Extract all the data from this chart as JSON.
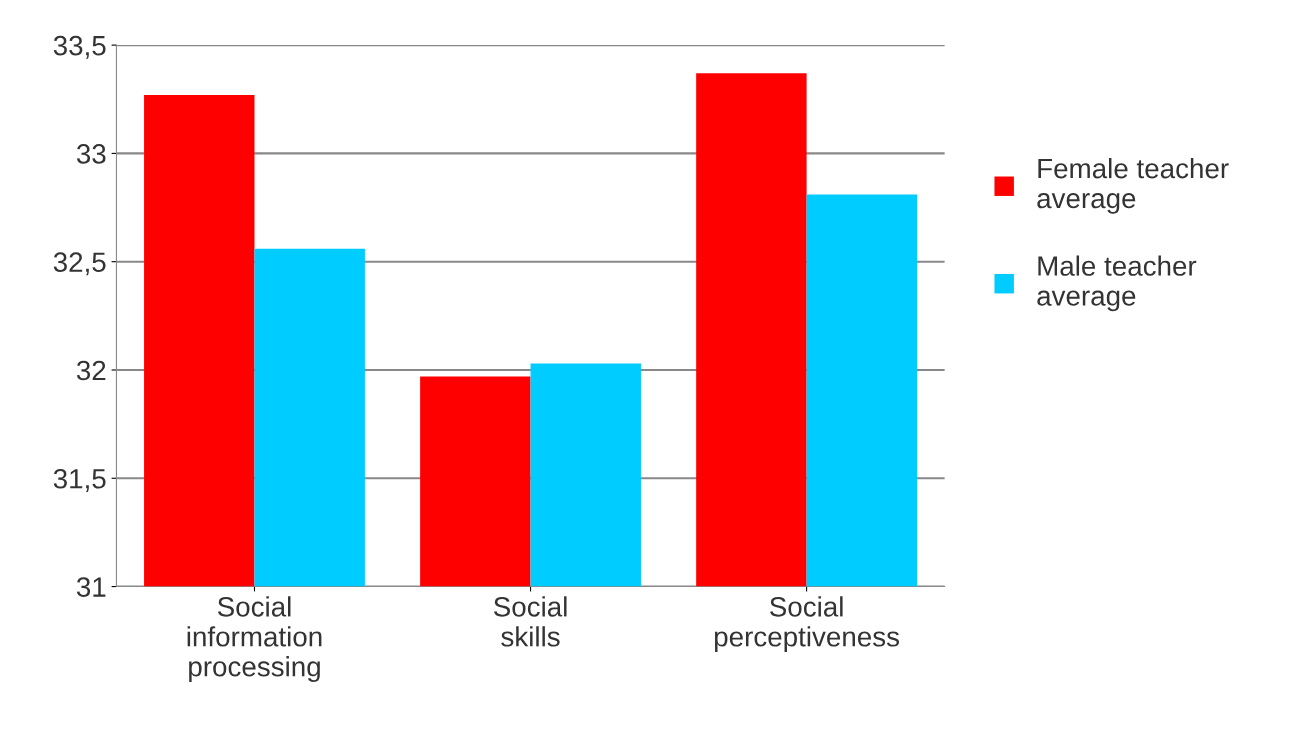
{
  "chart_data": {
    "type": "bar",
    "categories": [
      "Social\ninformation\nprocessing",
      "Social\nskills",
      "Social\nperceptiveness"
    ],
    "series": [
      {
        "name": "Female teacher\naverage",
        "color": "#ff0000",
        "values": [
          33.27,
          31.97,
          33.37
        ]
      },
      {
        "name": "Male teacher\naverage",
        "color": "#00ccff",
        "values": [
          32.56,
          32.03,
          32.81
        ]
      }
    ],
    "ylim": [
      31,
      33.5
    ],
    "yticks": [
      31,
      {
        "value": 31.5,
        "label": "31,5"
      },
      32,
      {
        "value": 32.5,
        "label": "32,5"
      },
      33,
      {
        "value": 33.5,
        "label": "33,5"
      }
    ],
    "grid": "y",
    "legend": "right"
  }
}
